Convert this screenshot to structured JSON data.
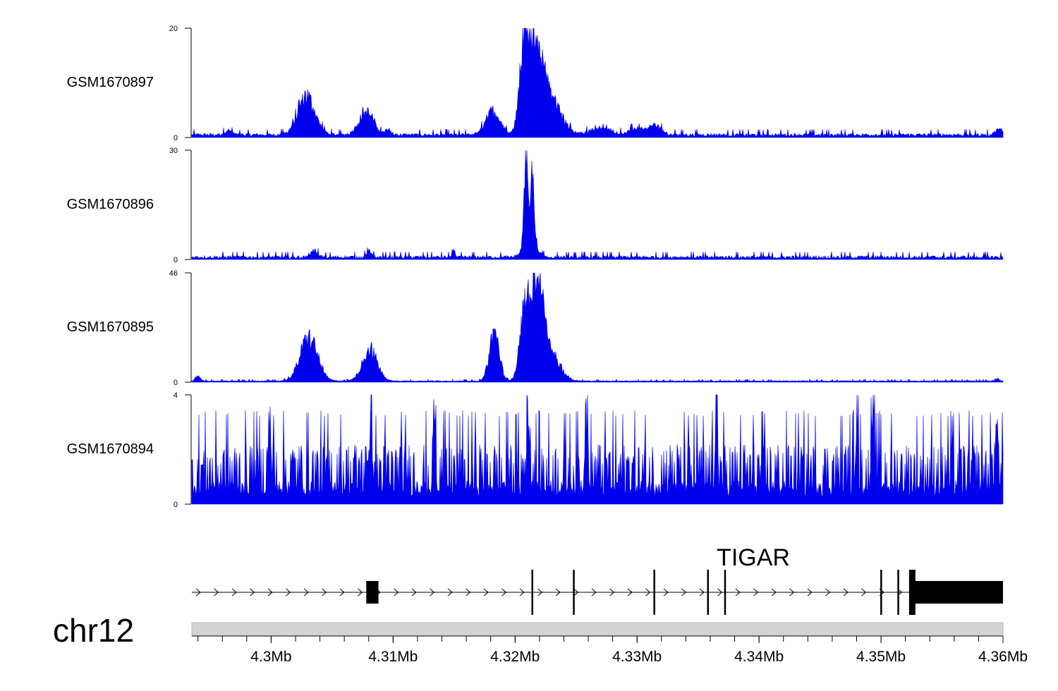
{
  "chart_data": {
    "type": "area",
    "x_unit": "Mb",
    "xlim": [
      4.2935,
      4.36
    ],
    "x_ticks": [
      {
        "value": 4.3,
        "label": "4.3Mb"
      },
      {
        "value": 4.31,
        "label": "4.31Mb"
      },
      {
        "value": 4.32,
        "label": "4.32Mb"
      },
      {
        "value": 4.33,
        "label": "4.33Mb"
      },
      {
        "value": 4.34,
        "label": "4.34Mb"
      },
      {
        "value": 4.35,
        "label": "4.35Mb"
      },
      {
        "value": 4.36,
        "label": "4.36Mb"
      }
    ],
    "fill_color": "#0000ee",
    "tracks": [
      {
        "name": "GSM1670897",
        "ylim": [
          0,
          20
        ],
        "y_tick_labels": [
          "0",
          "20"
        ],
        "baseline": 0.2,
        "noise": 0.6,
        "peaks": [
          {
            "x": 4.2965,
            "h": 1.0,
            "w": 0.0003
          },
          {
            "x": 4.3029,
            "h": 8.5,
            "w": 0.0007
          },
          {
            "x": 4.3078,
            "h": 5.0,
            "w": 0.0006
          },
          {
            "x": 4.3096,
            "h": 1.5,
            "w": 0.0002
          },
          {
            "x": 4.3182,
            "h": 5.2,
            "w": 0.0006
          },
          {
            "x": 4.3208,
            "h": 19.5,
            "w": 0.0004
          },
          {
            "x": 4.3217,
            "h": 15.5,
            "w": 0.0006
          },
          {
            "x": 4.3228,
            "h": 8.0,
            "w": 0.0009
          },
          {
            "x": 4.327,
            "h": 1.5,
            "w": 0.0009
          },
          {
            "x": 4.33,
            "h": 1.4,
            "w": 0.0006
          },
          {
            "x": 4.3315,
            "h": 2.0,
            "w": 0.0005
          },
          {
            "x": 4.3597,
            "h": 1.2,
            "w": 0.0003
          }
        ]
      },
      {
        "name": "GSM1670896",
        "ylim": [
          0,
          30
        ],
        "y_tick_labels": [
          "0",
          "30"
        ],
        "baseline": 0.2,
        "noise": 0.9,
        "peaks": [
          {
            "x": 4.3209,
            "h": 29.0,
            "w": 0.00015
          },
          {
            "x": 4.3214,
            "h": 21.0,
            "w": 0.00015
          },
          {
            "x": 4.3212,
            "h": 6.0,
            "w": 0.0005
          },
          {
            "x": 4.315,
            "h": 2.5,
            "w": 0.0001
          },
          {
            "x": 4.3035,
            "h": 2.0,
            "w": 0.0003
          },
          {
            "x": 4.308,
            "h": 2.0,
            "w": 0.0002
          }
        ]
      },
      {
        "name": "GSM1670895",
        "ylim": [
          0,
          46
        ],
        "y_tick_labels": [
          "0",
          "46"
        ],
        "baseline": 0.3,
        "noise": 0.4,
        "peaks": [
          {
            "x": 4.294,
            "h": 2.5,
            "w": 0.0002
          },
          {
            "x": 4.3031,
            "h": 22.0,
            "w": 0.0007
          },
          {
            "x": 4.3081,
            "h": 16.0,
            "w": 0.0006
          },
          {
            "x": 4.3183,
            "h": 25.0,
            "w": 0.0004
          },
          {
            "x": 4.3208,
            "h": 35.0,
            "w": 0.0004
          },
          {
            "x": 4.3218,
            "h": 44.0,
            "w": 0.0005
          },
          {
            "x": 4.3228,
            "h": 15.0,
            "w": 0.0008
          },
          {
            "x": 4.3595,
            "h": 1.0,
            "w": 0.0002
          }
        ]
      },
      {
        "name": "GSM1670894",
        "ylim": [
          0,
          4
        ],
        "y_tick_labels": [
          "0",
          "4"
        ],
        "baseline": 0.25,
        "noise": 1.6,
        "spiky": true,
        "peaks": [
          {
            "x": 4.2999,
            "h": 2.8,
            "w": 0.0001
          },
          {
            "x": 4.3082,
            "h": 3.4,
            "w": 0.0001
          },
          {
            "x": 4.3134,
            "h": 2.8,
            "w": 0.0001
          },
          {
            "x": 4.3211,
            "h": 2.9,
            "w": 0.0001
          },
          {
            "x": 4.3258,
            "h": 3.4,
            "w": 0.0001
          },
          {
            "x": 4.3365,
            "h": 3.4,
            "w": 0.0001
          },
          {
            "x": 4.348,
            "h": 3.0,
            "w": 0.0001
          },
          {
            "x": 4.3493,
            "h": 4.0,
            "w": 0.0001
          },
          {
            "x": 4.3595,
            "h": 2.8,
            "w": 0.0001
          }
        ]
      }
    ],
    "gene": {
      "name": "TIGAR",
      "strand": "+",
      "intron_line": [
        4.2935,
        4.36
      ],
      "exons": [
        {
          "start": 4.3078,
          "end": 4.3088,
          "kind": "utr"
        },
        {
          "start": 4.3214,
          "end": 4.32145,
          "kind": "line"
        },
        {
          "start": 4.3248,
          "end": 4.32485,
          "kind": "line"
        },
        {
          "start": 4.3314,
          "end": 4.33145,
          "kind": "line"
        },
        {
          "start": 4.3358,
          "end": 4.33585,
          "kind": "line"
        },
        {
          "start": 4.3372,
          "end": 4.33725,
          "kind": "line"
        },
        {
          "start": 4.35,
          "end": 4.35005,
          "kind": "line"
        },
        {
          "start": 4.3514,
          "end": 4.35145,
          "kind": "line"
        },
        {
          "start": 4.3523,
          "end": 4.3528,
          "kind": "tall"
        },
        {
          "start": 4.3528,
          "end": 4.36,
          "kind": "utr"
        }
      ]
    },
    "chromosome": "chr12"
  }
}
